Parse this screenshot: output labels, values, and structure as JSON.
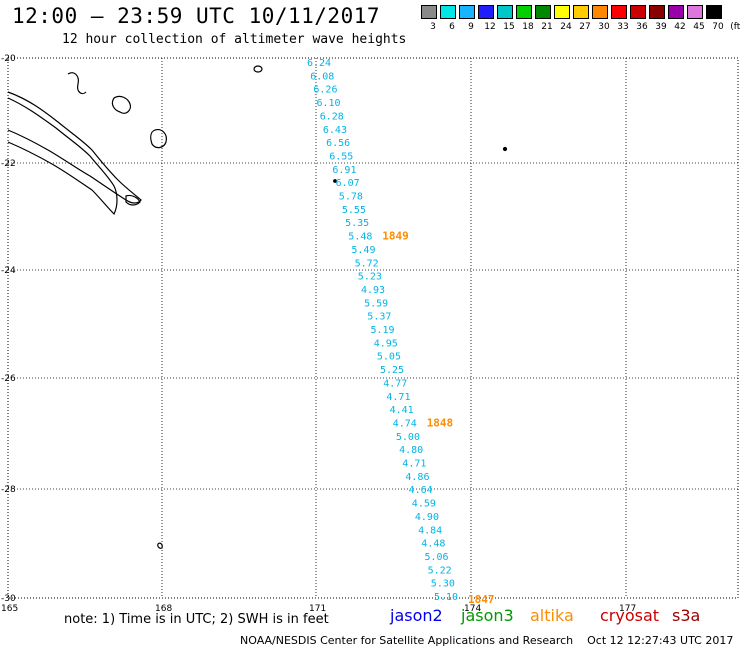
{
  "title": "12:00 — 23:59 UTC 10/11/2017",
  "subtitle": "12 hour collection of altimeter wave heights",
  "legend": {
    "labels": [
      "3",
      "6",
      "9",
      "12",
      "15",
      "18",
      "21",
      "24",
      "27",
      "30",
      "33",
      "36",
      "39",
      "42",
      "45",
      "70",
      "(ft)"
    ],
    "colors": [
      "#8a8a8a",
      "#00e5e5",
      "#19b4ff",
      "#1e1eff",
      "#00c8c8",
      "#00d000",
      "#008800",
      "#ffff00",
      "#ffcc00",
      "#ff8800",
      "#ff0000",
      "#cc0000",
      "#880000",
      "#9900aa",
      "#dd77dd",
      "#000000"
    ]
  },
  "axes": {
    "lon_labels": [
      "165",
      "168",
      "171",
      "174",
      "177"
    ],
    "lat_labels": [
      "-20",
      "-22",
      "-24",
      "-26",
      "-28",
      "-30"
    ]
  },
  "track": {
    "color": "#00b4e6",
    "values": [
      "6.24",
      "6.08",
      "6.26",
      "6.10",
      "6.28",
      "6.43",
      "6.56",
      "6.55",
      "6.91",
      "6.07",
      "5.78",
      "5.55",
      "5.35",
      "5.48",
      "5.49",
      "5.72",
      "5.23",
      "4.93",
      "5.59",
      "5.37",
      "5.19",
      "4.95",
      "5.05",
      "5.25",
      "4.77",
      "4.71",
      "4.41",
      "4.74",
      "5.00",
      "4.80",
      "4.71",
      "4.86",
      "4.64",
      "4.59",
      "4.90",
      "4.84",
      "4.48",
      "5.06",
      "5.22",
      "5.30",
      "5.10"
    ],
    "markers": [
      {
        "label": "1849",
        "at": "5.48"
      },
      {
        "label": "1848",
        "at": "4.74"
      },
      {
        "label": "1847",
        "at": "5.10"
      }
    ],
    "marker_color": "#ff8c00"
  },
  "note": "note: 1) Time is in UTC; 2) SWH is in feet",
  "satellites": [
    {
      "name": "jason2",
      "color": "#0000ee"
    },
    {
      "name": "jason3",
      "color": "#009900"
    },
    {
      "name": "altika",
      "color": "#ff8c00"
    },
    {
      "name": "cryosat",
      "color": "#cc0000"
    },
    {
      "name": "s3a",
      "color": "#990000"
    }
  ],
  "credit": "NOAA/NESDIS Center for Satellite Applications and Research    Oct 12 12:27:43 UTC 2017"
}
